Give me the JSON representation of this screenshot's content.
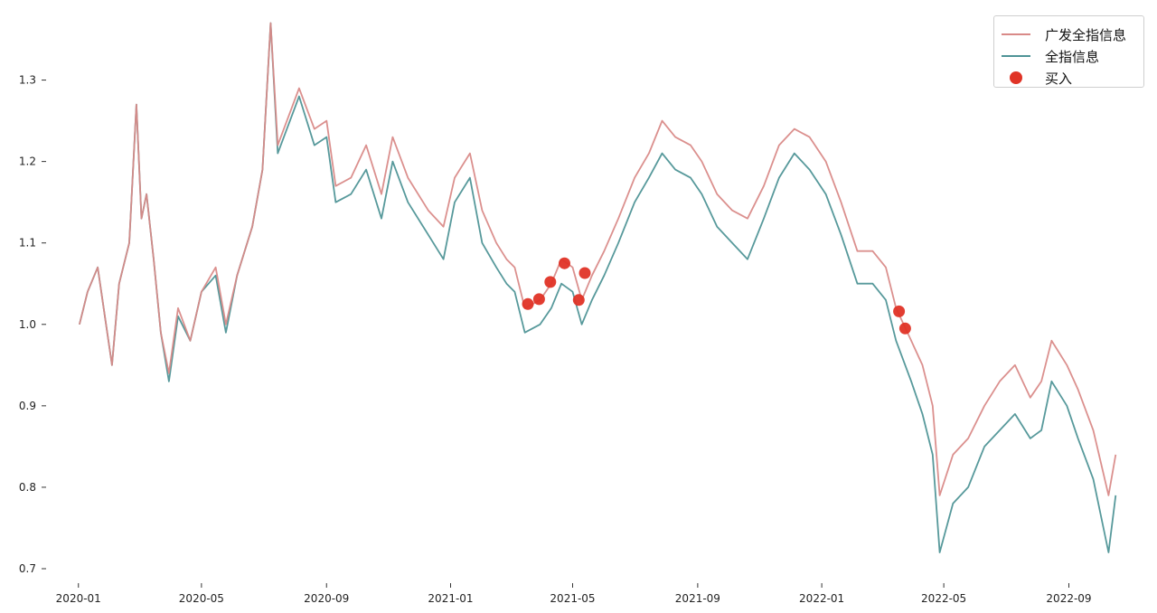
{
  "chart_data": {
    "type": "line",
    "title": "",
    "xlabel": "",
    "ylabel": "",
    "x_tick_labels": [
      "2020-01",
      "2020-05",
      "2020-09",
      "2021-01",
      "2021-05",
      "2021-09",
      "2022-01",
      "2022-05",
      "2022-09"
    ],
    "y_tick_labels": [
      "0.7",
      "0.8",
      "0.9",
      "1.0",
      "1.1",
      "1.2",
      "1.3"
    ],
    "y_ticks": [
      0.7,
      0.8,
      0.9,
      1.0,
      1.1,
      1.2,
      1.3
    ],
    "ylim": [
      0.69,
      1.385
    ],
    "xlim": [
      "2019-12-10",
      "2022-10-31"
    ],
    "grid": false,
    "legend_position": "top-right",
    "series": [
      {
        "name": "广发全指信息",
        "color": "#d98a88",
        "points": [
          [
            "2020-01-02",
            1.0
          ],
          [
            "2020-01-10",
            1.04
          ],
          [
            "2020-01-20",
            1.07
          ],
          [
            "2020-02-03",
            0.95
          ],
          [
            "2020-02-10",
            1.05
          ],
          [
            "2020-02-20",
            1.1
          ],
          [
            "2020-02-27",
            1.27
          ],
          [
            "2020-03-03",
            1.13
          ],
          [
            "2020-03-08",
            1.16
          ],
          [
            "2020-03-15",
            1.08
          ],
          [
            "2020-03-22",
            0.99
          ],
          [
            "2020-03-30",
            0.94
          ],
          [
            "2020-04-08",
            1.02
          ],
          [
            "2020-04-20",
            0.98
          ],
          [
            "2020-05-01",
            1.04
          ],
          [
            "2020-05-15",
            1.07
          ],
          [
            "2020-05-25",
            1.0
          ],
          [
            "2020-06-05",
            1.06
          ],
          [
            "2020-06-20",
            1.12
          ],
          [
            "2020-06-30",
            1.19
          ],
          [
            "2020-07-08",
            1.37
          ],
          [
            "2020-07-15",
            1.22
          ],
          [
            "2020-07-24",
            1.25
          ],
          [
            "2020-08-05",
            1.29
          ],
          [
            "2020-08-20",
            1.24
          ],
          [
            "2020-09-01",
            1.25
          ],
          [
            "2020-09-10",
            1.17
          ],
          [
            "2020-09-25",
            1.18
          ],
          [
            "2020-10-10",
            1.22
          ],
          [
            "2020-10-25",
            1.16
          ],
          [
            "2020-11-05",
            1.23
          ],
          [
            "2020-11-20",
            1.18
          ],
          [
            "2020-12-10",
            1.14
          ],
          [
            "2020-12-25",
            1.12
          ],
          [
            "2021-01-05",
            1.18
          ],
          [
            "2021-01-20",
            1.21
          ],
          [
            "2021-02-01",
            1.14
          ],
          [
            "2021-02-15",
            1.1
          ],
          [
            "2021-02-25",
            1.08
          ],
          [
            "2021-03-05",
            1.07
          ],
          [
            "2021-03-15",
            1.02
          ],
          [
            "2021-03-30",
            1.03
          ],
          [
            "2021-04-10",
            1.05
          ],
          [
            "2021-04-20",
            1.08
          ],
          [
            "2021-05-01",
            1.07
          ],
          [
            "2021-05-10",
            1.03
          ],
          [
            "2021-05-20",
            1.06
          ],
          [
            "2021-06-01",
            1.09
          ],
          [
            "2021-06-15",
            1.13
          ],
          [
            "2021-07-01",
            1.18
          ],
          [
            "2021-07-15",
            1.21
          ],
          [
            "2021-07-28",
            1.25
          ],
          [
            "2021-08-10",
            1.23
          ],
          [
            "2021-08-25",
            1.22
          ],
          [
            "2021-09-05",
            1.2
          ],
          [
            "2021-09-20",
            1.16
          ],
          [
            "2021-10-05",
            1.14
          ],
          [
            "2021-10-20",
            1.13
          ],
          [
            "2021-11-05",
            1.17
          ],
          [
            "2021-11-20",
            1.22
          ],
          [
            "2021-12-05",
            1.24
          ],
          [
            "2021-12-20",
            1.23
          ],
          [
            "2022-01-05",
            1.2
          ],
          [
            "2022-01-20",
            1.15
          ],
          [
            "2022-02-05",
            1.09
          ],
          [
            "2022-02-20",
            1.09
          ],
          [
            "2022-03-05",
            1.07
          ],
          [
            "2022-03-15",
            1.02
          ],
          [
            "2022-03-30",
            0.98
          ],
          [
            "2022-04-10",
            0.95
          ],
          [
            "2022-04-20",
            0.9
          ],
          [
            "2022-04-27",
            0.79
          ],
          [
            "2022-05-10",
            0.84
          ],
          [
            "2022-05-25",
            0.86
          ],
          [
            "2022-06-10",
            0.9
          ],
          [
            "2022-06-25",
            0.93
          ],
          [
            "2022-07-10",
            0.95
          ],
          [
            "2022-07-25",
            0.91
          ],
          [
            "2022-08-05",
            0.93
          ],
          [
            "2022-08-15",
            0.98
          ],
          [
            "2022-08-30",
            0.95
          ],
          [
            "2022-09-10",
            0.92
          ],
          [
            "2022-09-25",
            0.87
          ],
          [
            "2022-10-10",
            0.79
          ],
          [
            "2022-10-17",
            0.84
          ]
        ]
      },
      {
        "name": "全指信息",
        "color": "#4e9396",
        "points": [
          [
            "2020-01-02",
            1.0
          ],
          [
            "2020-01-10",
            1.04
          ],
          [
            "2020-01-20",
            1.07
          ],
          [
            "2020-02-03",
            0.95
          ],
          [
            "2020-02-10",
            1.05
          ],
          [
            "2020-02-20",
            1.1
          ],
          [
            "2020-02-27",
            1.27
          ],
          [
            "2020-03-03",
            1.13
          ],
          [
            "2020-03-08",
            1.16
          ],
          [
            "2020-03-15",
            1.08
          ],
          [
            "2020-03-22",
            0.99
          ],
          [
            "2020-03-30",
            0.93
          ],
          [
            "2020-04-08",
            1.01
          ],
          [
            "2020-04-20",
            0.98
          ],
          [
            "2020-05-01",
            1.04
          ],
          [
            "2020-05-15",
            1.06
          ],
          [
            "2020-05-25",
            0.99
          ],
          [
            "2020-06-05",
            1.06
          ],
          [
            "2020-06-20",
            1.12
          ],
          [
            "2020-06-30",
            1.19
          ],
          [
            "2020-07-08",
            1.37
          ],
          [
            "2020-07-15",
            1.21
          ],
          [
            "2020-07-24",
            1.24
          ],
          [
            "2020-08-05",
            1.28
          ],
          [
            "2020-08-20",
            1.22
          ],
          [
            "2020-09-01",
            1.23
          ],
          [
            "2020-09-10",
            1.15
          ],
          [
            "2020-09-25",
            1.16
          ],
          [
            "2020-10-10",
            1.19
          ],
          [
            "2020-10-25",
            1.13
          ],
          [
            "2020-11-05",
            1.2
          ],
          [
            "2020-11-20",
            1.15
          ],
          [
            "2020-12-10",
            1.11
          ],
          [
            "2020-12-25",
            1.08
          ],
          [
            "2021-01-05",
            1.15
          ],
          [
            "2021-01-20",
            1.18
          ],
          [
            "2021-02-01",
            1.1
          ],
          [
            "2021-02-15",
            1.07
          ],
          [
            "2021-02-25",
            1.05
          ],
          [
            "2021-03-05",
            1.04
          ],
          [
            "2021-03-15",
            0.99
          ],
          [
            "2021-03-30",
            1.0
          ],
          [
            "2021-04-10",
            1.02
          ],
          [
            "2021-04-20",
            1.05
          ],
          [
            "2021-05-01",
            1.04
          ],
          [
            "2021-05-10",
            1.0
          ],
          [
            "2021-05-20",
            1.03
          ],
          [
            "2021-06-01",
            1.06
          ],
          [
            "2021-06-15",
            1.1
          ],
          [
            "2021-07-01",
            1.15
          ],
          [
            "2021-07-15",
            1.18
          ],
          [
            "2021-07-28",
            1.21
          ],
          [
            "2021-08-10",
            1.19
          ],
          [
            "2021-08-25",
            1.18
          ],
          [
            "2021-09-05",
            1.16
          ],
          [
            "2021-09-20",
            1.12
          ],
          [
            "2021-10-05",
            1.1
          ],
          [
            "2021-10-20",
            1.08
          ],
          [
            "2021-11-05",
            1.13
          ],
          [
            "2021-11-20",
            1.18
          ],
          [
            "2021-12-05",
            1.21
          ],
          [
            "2021-12-20",
            1.19
          ],
          [
            "2022-01-05",
            1.16
          ],
          [
            "2022-01-20",
            1.11
          ],
          [
            "2022-02-05",
            1.05
          ],
          [
            "2022-02-20",
            1.05
          ],
          [
            "2022-03-05",
            1.03
          ],
          [
            "2022-03-15",
            0.98
          ],
          [
            "2022-03-30",
            0.93
          ],
          [
            "2022-04-10",
            0.89
          ],
          [
            "2022-04-20",
            0.84
          ],
          [
            "2022-04-27",
            0.72
          ],
          [
            "2022-05-10",
            0.78
          ],
          [
            "2022-05-25",
            0.8
          ],
          [
            "2022-06-10",
            0.85
          ],
          [
            "2022-06-25",
            0.87
          ],
          [
            "2022-07-10",
            0.89
          ],
          [
            "2022-07-25",
            0.86
          ],
          [
            "2022-08-05",
            0.87
          ],
          [
            "2022-08-15",
            0.93
          ],
          [
            "2022-08-30",
            0.9
          ],
          [
            "2022-09-10",
            0.86
          ],
          [
            "2022-09-25",
            0.81
          ],
          [
            "2022-10-10",
            0.72
          ],
          [
            "2022-10-17",
            0.79
          ]
        ]
      },
      {
        "name": "买入",
        "type": "scatter",
        "color": "#e03326",
        "points": [
          [
            "2021-03-18",
            1.025
          ],
          [
            "2021-03-29",
            1.031
          ],
          [
            "2021-04-09",
            1.052
          ],
          [
            "2021-04-23",
            1.075
          ],
          [
            "2021-05-07",
            1.03
          ],
          [
            "2021-05-13",
            1.063
          ],
          [
            "2022-03-18",
            1.016
          ],
          [
            "2022-03-24",
            0.995
          ]
        ]
      }
    ]
  }
}
